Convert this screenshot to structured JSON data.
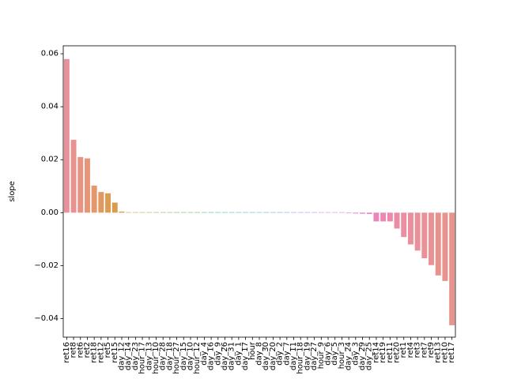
{
  "chart_data": {
    "type": "bar",
    "title": "",
    "xlabel": "",
    "ylabel": "slope",
    "ylim": [
      -0.047,
      0.063
    ],
    "yticks": [
      -0.04,
      -0.02,
      0.0,
      0.02,
      0.04,
      0.06
    ],
    "ytick_labels": [
      "−0.04",
      "−0.02",
      "0.00",
      "0.02",
      "0.04",
      "0.06"
    ],
    "grid": false,
    "categories": [
      "ret16",
      "ret8",
      "ret6",
      "ret2",
      "ret18",
      "ret12",
      "ret5",
      "ret15",
      "day_12",
      "day_14",
      "day_23",
      "hour_17",
      "day_13",
      "hour_10",
      "day_28",
      "day_18",
      "hour_27",
      "day_15",
      "day_10",
      "hour_12",
      "day_4",
      "day_16",
      "day_9",
      "day_26",
      "day_31",
      "day_1",
      "day_17",
      "hour",
      "day_8",
      "day_30",
      "day_20",
      "day_2",
      "day_7",
      "day_11",
      "hour_18",
      "day_19",
      "day_27",
      "hour_9",
      "day_6",
      "day_5",
      "hour_3",
      "day_24",
      "day_3",
      "day_29",
      "day_25",
      "ret14",
      "ret19",
      "ret11",
      "ret20",
      "ret1",
      "ret4",
      "ret3",
      "ret7",
      "ret9",
      "ret13",
      "ret10",
      "ret17"
    ],
    "values": [
      0.058,
      0.0275,
      0.021,
      0.0205,
      0.0102,
      0.0078,
      0.0073,
      0.0038,
      0.0004,
      0.0001,
      0.0,
      0.0,
      0.0,
      0.0,
      0.0,
      0.0,
      0.0,
      0.0,
      0.0,
      0.0,
      0.0,
      0.0,
      0.0,
      0.0,
      0.0,
      0.0,
      0.0,
      0.0,
      0.0,
      0.0,
      0.0,
      0.0,
      0.0,
      0.0,
      0.0,
      0.0,
      0.0,
      0.0,
      0.0,
      0.0,
      0.0,
      -0.0002,
      -0.0003,
      -0.0004,
      -0.0005,
      -0.0033,
      -0.0033,
      -0.0033,
      -0.006,
      -0.0092,
      -0.012,
      -0.0143,
      -0.0172,
      -0.0198,
      -0.0237,
      -0.0258,
      -0.0425
    ],
    "colors": [
      "#e8919b",
      "#e8928f",
      "#e79484",
      "#e69577",
      "#e4976b",
      "#e1995f",
      "#dd9b54",
      "#d89d4c",
      "#d1a048",
      "#c9a346",
      "#bfa746",
      "#b5aa47",
      "#aaad49",
      "#9eb04c",
      "#92b24f",
      "#84b553",
      "#76b758",
      "#67b95d",
      "#57bb66",
      "#4dbc75",
      "#49bd84",
      "#47bd92",
      "#47bd9e",
      "#48bdaa",
      "#49bcb4",
      "#4bbbbe",
      "#4db9c7",
      "#50b6d0",
      "#54b3d8",
      "#5aafe1",
      "#62aae8",
      "#6da4ee",
      "#7a9ef3",
      "#889af6",
      "#9695f8",
      "#a490f8",
      "#b18bf7",
      "#bd87f4",
      "#c884ef",
      "#d282e9",
      "#da80e2",
      "#e07fdb",
      "#e580d3",
      "#e882ca",
      "#ea84c2",
      "#eb86ba",
      "#eb88b3",
      "#eb8aac",
      "#ea8ca6",
      "#ea8ea1",
      "#e98f9d",
      "#e99099",
      "#e99196",
      "#e89293",
      "#e89290",
      "#e8938e",
      "#e8938c"
    ]
  }
}
